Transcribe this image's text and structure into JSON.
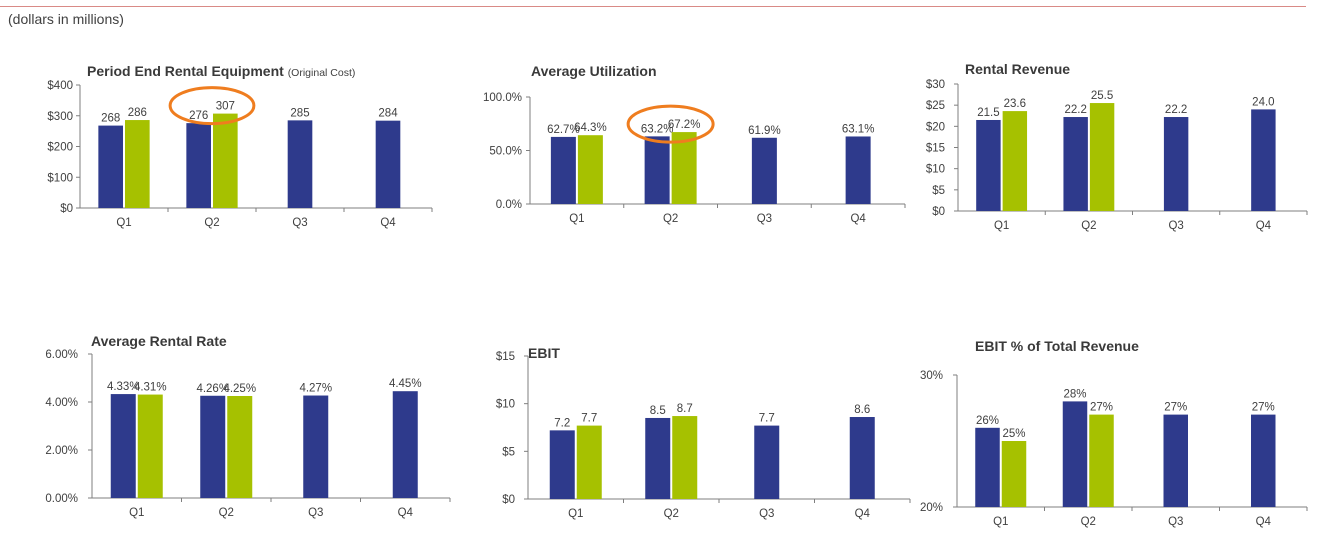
{
  "header": {
    "note": "(dollars in millions)"
  },
  "colors": {
    "series_a": "#2e3a8c",
    "series_b": "#a6c100",
    "highlight": "#ef7d1f",
    "axis": "#7f7f7f"
  },
  "chart_data": [
    {
      "type": "bar",
      "title": "Period End Rental Equipment",
      "subtitle": "(Original Cost)",
      "categories": [
        "Q1",
        "Q2",
        "Q3",
        "Q4"
      ],
      "ylim": [
        0,
        400
      ],
      "yticks": [
        "$0",
        "$100",
        "$200",
        "$300",
        "$400"
      ],
      "ytick_values": [
        0,
        100,
        200,
        300,
        400
      ],
      "series": [
        {
          "values": [
            268,
            276,
            285,
            284
          ],
          "labels": [
            "268",
            "276",
            "285",
            "284"
          ]
        },
        {
          "values": [
            286,
            307,
            null,
            null
          ],
          "labels": [
            "286",
            "307",
            "",
            ""
          ]
        }
      ],
      "highlight_category": "Q2"
    },
    {
      "type": "bar",
      "title": "Average Utilization",
      "categories": [
        "Q1",
        "Q2",
        "Q3",
        "Q4"
      ],
      "ylim": [
        0,
        100
      ],
      "yticks": [
        "0.0%",
        "50.0%",
        "100.0%"
      ],
      "ytick_values": [
        0,
        50,
        100
      ],
      "series": [
        {
          "values": [
            62.7,
            63.2,
            61.9,
            63.1
          ],
          "labels": [
            "62.7%",
            "63.2%",
            "61.9%",
            "63.1%"
          ]
        },
        {
          "values": [
            64.3,
            67.2,
            null,
            null
          ],
          "labels": [
            "64.3%",
            "67.2%",
            "",
            ""
          ]
        }
      ],
      "highlight_category": "Q2"
    },
    {
      "type": "bar",
      "title": "Rental Revenue",
      "categories": [
        "Q1",
        "Q2",
        "Q3",
        "Q4"
      ],
      "ylim": [
        0,
        30
      ],
      "yticks": [
        "$0",
        "$5",
        "$10",
        "$15",
        "$20",
        "$25",
        "$30"
      ],
      "ytick_values": [
        0,
        5,
        10,
        15,
        20,
        25,
        30
      ],
      "series": [
        {
          "values": [
            21.5,
            22.2,
            22.2,
            24.0
          ],
          "labels": [
            "21.5",
            "22.2",
            "22.2",
            "24.0"
          ]
        },
        {
          "values": [
            23.6,
            25.5,
            null,
            null
          ],
          "labels": [
            "23.6",
            "25.5",
            "",
            ""
          ]
        }
      ]
    },
    {
      "type": "bar",
      "title": "Average Rental Rate",
      "categories": [
        "Q1",
        "Q2",
        "Q3",
        "Q4"
      ],
      "ylim": [
        0,
        6
      ],
      "yticks": [
        "0.00%",
        "2.00%",
        "4.00%",
        "6.00%"
      ],
      "ytick_values": [
        0,
        2,
        4,
        6
      ],
      "series": [
        {
          "values": [
            4.33,
            4.26,
            4.27,
            4.45
          ],
          "labels": [
            "4.33%",
            "4.26%",
            "4.27%",
            "4.45%"
          ]
        },
        {
          "values": [
            4.31,
            4.25,
            null,
            null
          ],
          "labels": [
            "4.31%",
            "4.25%",
            "",
            ""
          ]
        }
      ]
    },
    {
      "type": "bar",
      "title": "EBIT",
      "categories": [
        "Q1",
        "Q2",
        "Q3",
        "Q4"
      ],
      "ylim": [
        0,
        15
      ],
      "yticks": [
        "$0",
        "$5",
        "$10",
        "$15"
      ],
      "ytick_values": [
        0,
        5,
        10,
        15
      ],
      "series": [
        {
          "values": [
            7.2,
            8.5,
            7.7,
            8.6
          ],
          "labels": [
            "7.2",
            "8.5",
            "7.7",
            "8.6"
          ]
        },
        {
          "values": [
            7.7,
            8.7,
            null,
            null
          ],
          "labels": [
            "7.7",
            "8.7",
            "",
            ""
          ]
        }
      ]
    },
    {
      "type": "bar",
      "title": "EBIT % of Total Revenue",
      "categories": [
        "Q1",
        "Q2",
        "Q3",
        "Q4"
      ],
      "ylim": [
        20,
        30
      ],
      "yticks": [
        "20%",
        "30%"
      ],
      "ytick_values": [
        20,
        30
      ],
      "series": [
        {
          "values": [
            26,
            28,
            27,
            27
          ],
          "labels": [
            "26%",
            "28%",
            "27%",
            "27%"
          ]
        },
        {
          "values": [
            25,
            27,
            null,
            null
          ],
          "labels": [
            "25%",
            "27%",
            "",
            ""
          ]
        }
      ]
    }
  ]
}
